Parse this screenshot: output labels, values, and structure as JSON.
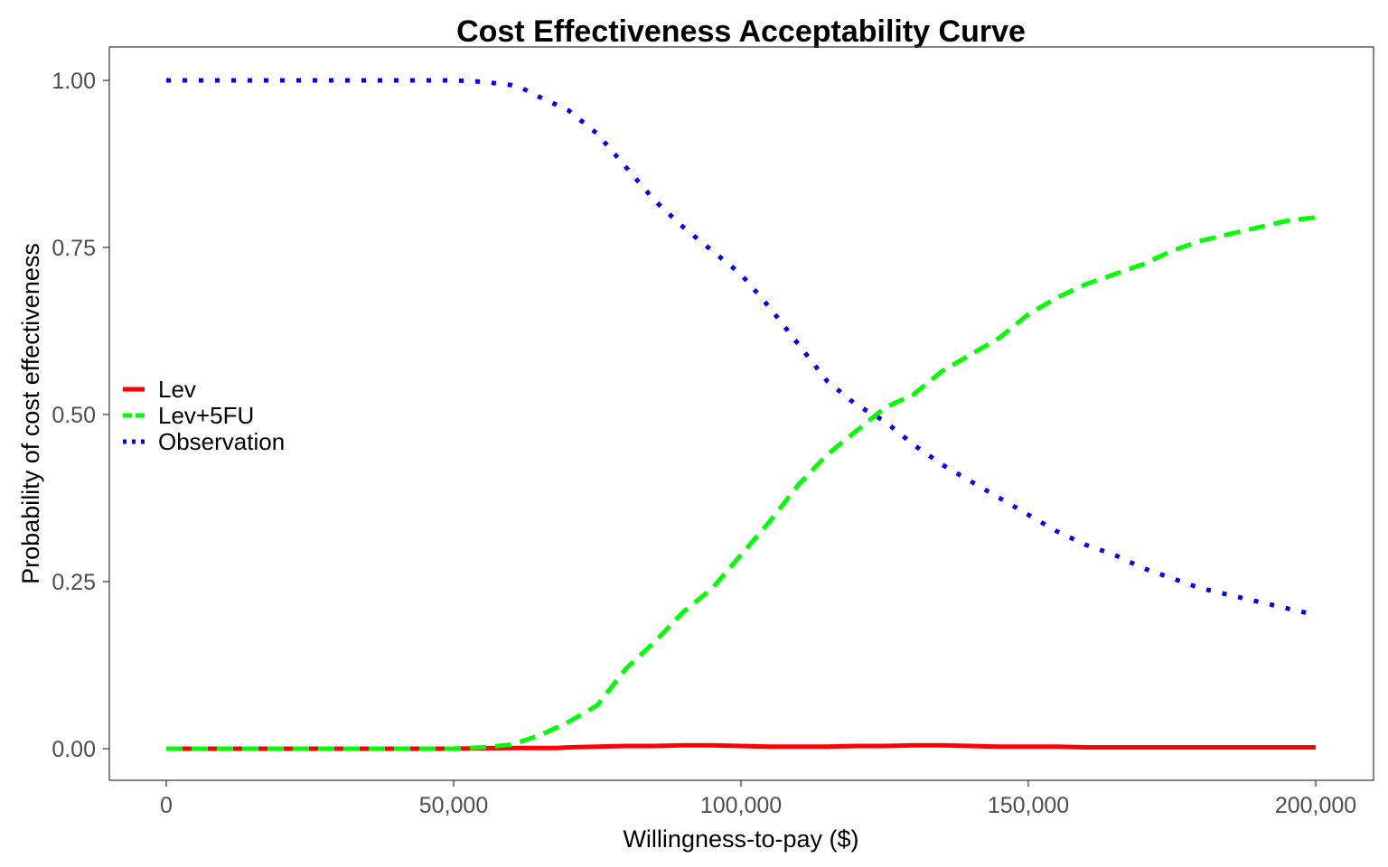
{
  "chart_data": {
    "type": "line",
    "title": "Cost Effectiveness Acceptability Curve",
    "xlabel": "Willingness-to-pay ($)",
    "ylabel": "Probability of cost effectiveness",
    "xlim": [
      0,
      200000
    ],
    "ylim": [
      0,
      1
    ],
    "x_ticks": [
      0,
      50000,
      100000,
      150000,
      200000
    ],
    "x_tick_labels": [
      "0",
      "50,000",
      "100,000",
      "150,000",
      "200,000"
    ],
    "y_ticks": [
      0,
      0.25,
      0.5,
      0.75,
      1.0
    ],
    "y_tick_labels": [
      "0.00",
      "0.25",
      "0.50",
      "0.75",
      "1.00"
    ],
    "grid": false,
    "legend_position": "left",
    "series": [
      {
        "name": "Lev",
        "color": "#ff0000",
        "dash": "solid",
        "x": [
          0,
          10000,
          20000,
          30000,
          40000,
          50000,
          60000,
          65000,
          68000,
          70000,
          75000,
          80000,
          85000,
          90000,
          95000,
          100000,
          105000,
          110000,
          115000,
          120000,
          125000,
          130000,
          135000,
          140000,
          145000,
          150000,
          155000,
          160000,
          170000,
          180000,
          190000,
          200000
        ],
        "y": [
          0,
          0,
          0,
          0,
          0,
          0,
          0.001,
          0.001,
          0.001,
          0.002,
          0.003,
          0.004,
          0.004,
          0.005,
          0.005,
          0.004,
          0.003,
          0.003,
          0.003,
          0.004,
          0.004,
          0.005,
          0.005,
          0.004,
          0.003,
          0.003,
          0.003,
          0.002,
          0.002,
          0.002,
          0.002,
          0.002
        ]
      },
      {
        "name": "Lev+5FU",
        "color": "#00ff00",
        "dash": "dashed",
        "x": [
          0,
          10000,
          20000,
          30000,
          40000,
          50000,
          55000,
          60000,
          65000,
          70000,
          75000,
          80000,
          85000,
          90000,
          95000,
          100000,
          105000,
          110000,
          115000,
          120000,
          125000,
          130000,
          135000,
          140000,
          145000,
          150000,
          155000,
          160000,
          165000,
          170000,
          175000,
          180000,
          185000,
          190000,
          195000,
          200000
        ],
        "y": [
          0,
          0,
          0,
          0,
          0,
          0,
          0.002,
          0.006,
          0.02,
          0.04,
          0.065,
          0.12,
          0.16,
          0.205,
          0.24,
          0.29,
          0.34,
          0.395,
          0.44,
          0.475,
          0.51,
          0.53,
          0.565,
          0.59,
          0.615,
          0.65,
          0.675,
          0.695,
          0.71,
          0.725,
          0.745,
          0.76,
          0.77,
          0.78,
          0.79,
          0.795
        ]
      },
      {
        "name": "Observation",
        "color": "#0000ff",
        "dash": "dotted",
        "x": [
          0,
          10000,
          20000,
          30000,
          40000,
          50000,
          55000,
          60000,
          62000,
          65000,
          70000,
          75000,
          80000,
          85000,
          90000,
          95000,
          100000,
          105000,
          110000,
          115000,
          120000,
          125000,
          130000,
          135000,
          140000,
          145000,
          150000,
          155000,
          160000,
          165000,
          170000,
          175000,
          180000,
          185000,
          190000,
          195000,
          200000
        ],
        "y": [
          1.0,
          1.0,
          1.0,
          1.0,
          1.0,
          1.0,
          0.998,
          0.993,
          0.988,
          0.975,
          0.955,
          0.92,
          0.87,
          0.82,
          0.78,
          0.745,
          0.71,
          0.66,
          0.605,
          0.55,
          0.515,
          0.49,
          0.455,
          0.425,
          0.4,
          0.375,
          0.35,
          0.325,
          0.305,
          0.29,
          0.27,
          0.255,
          0.24,
          0.23,
          0.22,
          0.21,
          0.2
        ]
      }
    ]
  }
}
